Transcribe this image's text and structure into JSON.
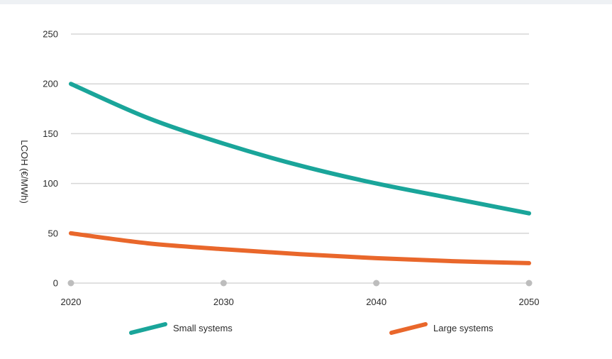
{
  "chart_data": {
    "type": "line",
    "title": "",
    "xlabel": "",
    "ylabel": "LCOH (€/MWh)",
    "x": [
      2020,
      2030,
      2040,
      2050
    ],
    "xlim": [
      2020,
      2050
    ],
    "ylim": [
      0,
      250
    ],
    "yticks": [
      0,
      50,
      100,
      150,
      200,
      250
    ],
    "xtick_labels": [
      "2020",
      "2030",
      "2040",
      "2050"
    ],
    "ytick_labels": [
      "0",
      "50",
      "100",
      "150",
      "200",
      "250"
    ],
    "grid": "horizontal",
    "legend_position": "bottom",
    "series": [
      {
        "name": "Small systems",
        "color": "#1aa59a",
        "x": [
          2020,
          2025,
          2030,
          2035,
          2040,
          2045,
          2050
        ],
        "values": [
          200,
          166,
          140,
          118,
          100,
          85,
          70
        ]
      },
      {
        "name": "Large systems",
        "color": "#e9672b",
        "x": [
          2020,
          2025,
          2030,
          2035,
          2040,
          2045,
          2050
        ],
        "values": [
          50,
          40,
          34,
          29,
          25,
          22,
          20
        ]
      }
    ]
  }
}
